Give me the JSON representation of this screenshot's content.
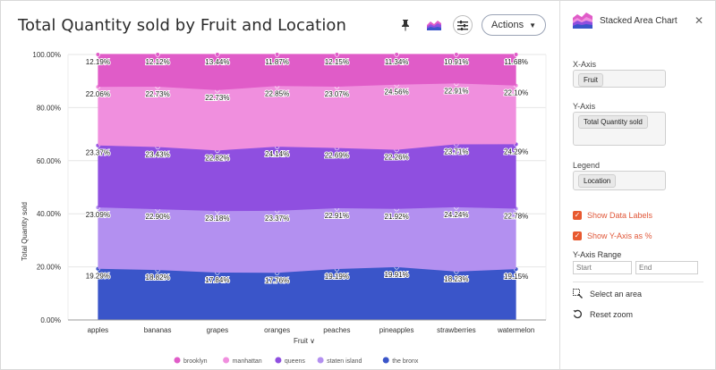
{
  "header": {
    "title": "Total Quantity sold by Fruit and Location",
    "actions_label": "Actions"
  },
  "panel": {
    "title": "Stacked Area Chart",
    "x_axis_label": "X-Axis",
    "x_axis_value": "Fruit",
    "y_axis_label": "Y-Axis",
    "y_axis_value": "Total Quantity sold",
    "legend_label": "Legend",
    "legend_value": "Location",
    "show_data_labels": "Show Data Labels",
    "show_y_percent": "Show Y-Axis as %",
    "y_range_label": "Y-Axis Range",
    "start_placeholder": "Start",
    "end_placeholder": "End",
    "select_area": "Select an area",
    "reset_zoom": "Reset zoom"
  },
  "chart_data": {
    "type": "area",
    "stacked": true,
    "percent": true,
    "title": "Total Quantity sold by Fruit and Location",
    "xlabel": "Fruit",
    "ylabel": "Total Quantity sold",
    "categories": [
      "apples",
      "bananas",
      "grapes",
      "oranges",
      "peaches",
      "pineapples",
      "strawberries",
      "watermelon"
    ],
    "ylim": [
      0,
      100
    ],
    "yticks": [
      "0.00%",
      "20.00%",
      "40.00%",
      "60.00%",
      "80.00%",
      "100.00%"
    ],
    "legend_position": "bottom",
    "series": [
      {
        "name": "the bronx",
        "color": "#3a55c9",
        "values": [
          19.29,
          18.82,
          17.84,
          17.76,
          19.19,
          19.91,
          18.23,
          19.15
        ],
        "labels": [
          "19.29%",
          "18.82%",
          "17.84%",
          "17.76%",
          "19.19%",
          "19.91%",
          "18.23%",
          "19.15%"
        ]
      },
      {
        "name": "staten island",
        "color": "#b390f0",
        "values": [
          23.09,
          22.9,
          23.18,
          23.37,
          22.91,
          21.92,
          24.24,
          22.78
        ],
        "labels": [
          "23.09%",
          "22.90%",
          "23.18%",
          "23.37%",
          "22.91%",
          "21.92%",
          "24.24%",
          "22.78%"
        ]
      },
      {
        "name": "queens",
        "color": "#8f4fe0",
        "values": [
          23.37,
          23.43,
          22.82,
          24.14,
          22.69,
          22.26,
          23.71,
          24.29
        ],
        "labels": [
          "23.37%",
          "23.43%",
          "22.82%",
          "24.14%",
          "22.69%",
          "22.26%",
          "23.71%",
          "24.29%"
        ]
      },
      {
        "name": "manhattan",
        "color": "#f08fde",
        "values": [
          22.06,
          22.73,
          22.73,
          22.85,
          23.07,
          24.56,
          22.91,
          22.1
        ],
        "labels": [
          "22.06%",
          "22.73%",
          "22.73%",
          "22.85%",
          "23.07%",
          "24.56%",
          "22.91%",
          "22.10%"
        ]
      },
      {
        "name": "brooklyn",
        "color": "#e05cc8",
        "values": [
          12.19,
          12.12,
          13.44,
          11.87,
          12.15,
          11.34,
          10.91,
          11.68
        ],
        "labels": [
          "12.19%",
          "12.12%",
          "13.44%",
          "11.87%",
          "12.15%",
          "11.34%",
          "10.91%",
          "11.68%"
        ]
      }
    ],
    "legend_order": [
      "brooklyn",
      "manhattan",
      "queens",
      "staten island",
      "the bronx"
    ]
  }
}
